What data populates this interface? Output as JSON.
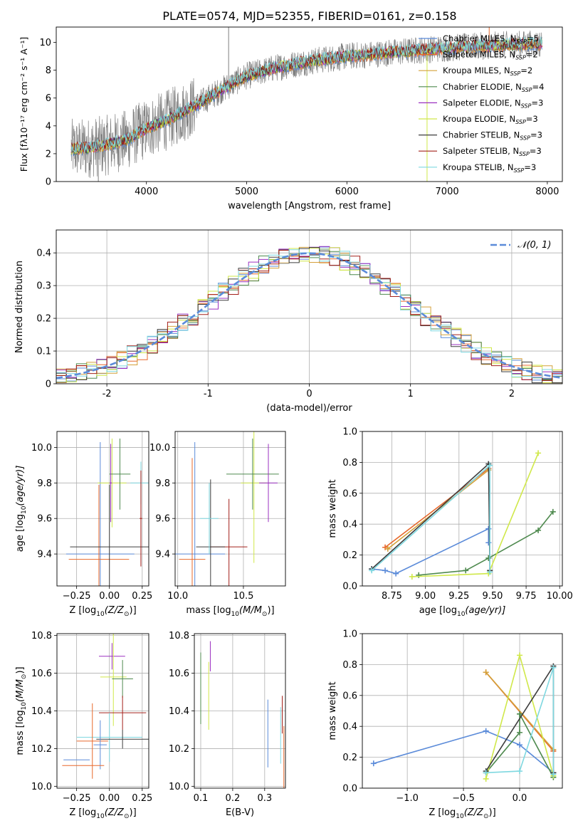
{
  "figure_title": "PLATE=0574, MJD=52355, FIBERID=0161, z=0.158",
  "colors": {
    "chabrier_miles": "#5b8bd9",
    "salpeter_miles": "#e8692c",
    "kroupa_miles": "#d4a03a",
    "chabrier_elodie": "#4f8a4f",
    "salpeter_elodie": "#9b30c0",
    "kroupa_elodie": "#d0e84a",
    "chabrier_stelib": "#3d3d3d",
    "salpeter_stelib": "#a3201a",
    "kroupa_stelib": "#7fd8e0",
    "data": "#808080",
    "normal": "#5b8bd9",
    "grid": "#b0b0b0"
  },
  "chart_data": [
    {
      "id": "spectrum",
      "type": "line",
      "xlabel": "wavelength [Angstrom, rest frame]",
      "ylabel": "Flux [fλ10⁻¹⁷ erg cm⁻² s⁻¹ A⁻¹]",
      "xlim": [
        3100,
        8150
      ],
      "ylim": [
        0,
        11.1
      ],
      "xticks": [
        4000,
        5000,
        6000,
        7000,
        8000
      ],
      "yticks": [
        0,
        2,
        4,
        6,
        8,
        10
      ],
      "grid": false,
      "legend_position": "top-right",
      "legend": [
        {
          "label": "Chabrier MILES, N",
          "sub": "SSP",
          "val": "=5"
        },
        {
          "label": "Salpeter MILES, N",
          "sub": "SSP",
          "val": "=2"
        },
        {
          "label": "Kroupa MILES, N",
          "sub": "SSP",
          "val": "=2"
        },
        {
          "label": "Chabrier ELODIE, N",
          "sub": "SSP",
          "val": "=4"
        },
        {
          "label": "Salpeter ELODIE, N",
          "sub": "SSP",
          "val": "=3"
        },
        {
          "label": "Kroupa ELODIE, N",
          "sub": "SSP",
          "val": "=3"
        },
        {
          "label": "Chabrier STELIB, N",
          "sub": "SSP",
          "val": "=3"
        },
        {
          "label": "Salpeter STELIB, N",
          "sub": "SSP",
          "val": "=3"
        },
        {
          "label": "Kroupa STELIB, N",
          "sub": "SSP",
          "val": "=3"
        }
      ],
      "continuum_x": [
        3200,
        3400,
        3600,
        3800,
        4000,
        4200,
        4500,
        4800,
        5000,
        5300,
        5600,
        6000,
        6500,
        7000,
        7500,
        7900
      ],
      "continuum_y": [
        2.3,
        2.4,
        2.6,
        3.0,
        3.8,
        4.4,
        5.5,
        6.8,
        7.6,
        8.2,
        8.6,
        9.0,
        9.3,
        9.6,
        9.8,
        9.9
      ],
      "spike_x": [
        4820,
        7420,
        6800,
        3520
      ],
      "spike_y": [
        11.1,
        11.1,
        0.0,
        0.0
      ]
    },
    {
      "id": "residual",
      "type": "histogram",
      "xlabel": "(data-model)/error",
      "ylabel": "Normed distribution",
      "xlim": [
        -2.5,
        2.5
      ],
      "ylim": [
        0,
        0.47
      ],
      "xticks": [
        -2,
        -1,
        0,
        1,
        2
      ],
      "yticks": [
        0,
        0.1,
        0.2,
        0.3,
        0.4
      ],
      "grid": true,
      "legend_position": "top-right",
      "legend_label": "𝒩(0, 1)",
      "bin_width": 0.1
    },
    {
      "id": "age_vs_Z",
      "type": "scatter",
      "xlabel_prefix": "Z [log",
      "xlabel_mid": "(Z/Z",
      "xlabel_suffix": ")]",
      "ylabel_prefix": "age  [log",
      "ylabel_mid": "(age/yr)]",
      "xlim": [
        -0.4,
        0.3
      ],
      "ylim": [
        9.22,
        10.09
      ],
      "xticks": [
        -0.25,
        0,
        0.25
      ],
      "xticklabels": [
        "−0.25",
        "0.00",
        "0.25"
      ],
      "yticks": [
        9.4,
        9.6,
        9.8,
        10.0
      ],
      "yticklabels": [
        "9.4",
        "9.6",
        "9.8",
        "10.0"
      ],
      "grid": true,
      "points": [
        {
          "c": "chabrier_miles",
          "x": -0.07,
          "y": 9.4,
          "xe": 0.26,
          "ye": 0.63
        },
        {
          "c": "salpeter_miles",
          "x": -0.08,
          "y": 9.37,
          "xe": 0.23,
          "ye": 0.42
        },
        {
          "c": "kroupa_elodie",
          "x": 0.02,
          "y": 9.8,
          "xe": 0.11,
          "ye": 0.25
        },
        {
          "c": "chabrier_elodie",
          "x": 0.08,
          "y": 9.85,
          "xe": 0.08,
          "ye": 0.2
        },
        {
          "c": "chabrier_stelib",
          "x": 0.0,
          "y": 9.44,
          "xe": 0.3,
          "ye": 0.35
        },
        {
          "c": "kroupa_stelib",
          "x": 0.24,
          "y": 9.8,
          "xe": 0.08,
          "ye": 0.12
        },
        {
          "c": "salpeter_stelib",
          "x": 0.24,
          "y": 9.6,
          "xe": 0.01,
          "ye": 0.27
        },
        {
          "c": "salpeter_elodie",
          "x": 0.01,
          "y": 9.8,
          "xe": 0.01,
          "ye": 0.22
        }
      ]
    },
    {
      "id": "age_vs_mass",
      "type": "scatter",
      "xlabel_prefix": "mass [log",
      "xlabel_mid": "(M/M",
      "xlabel_suffix": ")]",
      "xlim": [
        9.98,
        10.82
      ],
      "ylim": [
        9.22,
        10.09
      ],
      "xticks": [
        10.0,
        10.5
      ],
      "xticklabels": [
        "10.0",
        "10.5"
      ],
      "yticks": [
        9.4,
        9.6,
        9.8,
        10.0
      ],
      "yticklabels": [
        "9.4",
        "9.6",
        "9.8",
        "10.0"
      ],
      "grid": true,
      "points": [
        {
          "c": "chabrier_miles",
          "x": 10.13,
          "y": 9.4,
          "xe": 0.23,
          "ye": 0.63
        },
        {
          "c": "salpeter_miles",
          "x": 10.11,
          "y": 9.37,
          "xe": 0.1,
          "ye": 0.57
        },
        {
          "c": "salpeter_stelib",
          "x": 10.39,
          "y": 9.44,
          "xe": 0.14,
          "ye": 0.27
        },
        {
          "c": "chabrier_stelib",
          "x": 10.25,
          "y": 9.44,
          "xe": 0.11,
          "ye": 0.38
        },
        {
          "c": "kroupa_elodie",
          "x": 10.58,
          "y": 9.8,
          "xe": 0.1,
          "ye": 0.45
        },
        {
          "c": "chabrier_elodie",
          "x": 10.57,
          "y": 9.85,
          "xe": 0.2,
          "ye": 0.2
        },
        {
          "c": "salpeter_elodie",
          "x": 10.69,
          "y": 9.8,
          "xe": 0.07,
          "ye": 0.22
        },
        {
          "c": "kroupa_stelib",
          "x": 10.24,
          "y": 9.6,
          "xe": 0.07,
          "ye": 0.2
        }
      ]
    },
    {
      "id": "weight_vs_age",
      "type": "line",
      "xlabel_prefix": "age  [log",
      "xlabel_mid": "(age/yr)]",
      "ylabel": "mass weight",
      "xlim": [
        8.53,
        10.02
      ],
      "ylim": [
        0,
        1.0
      ],
      "xticks": [
        8.75,
        9.0,
        9.25,
        9.5,
        9.75,
        10.0
      ],
      "xticklabels": [
        "8.75",
        "9.00",
        "9.25",
        "9.50",
        "9.75",
        "10.00"
      ],
      "yticks": [
        0,
        0.2,
        0.4,
        0.6,
        0.8,
        1.0
      ],
      "yticklabels": [
        "0.0",
        "0.2",
        "0.4",
        "0.6",
        "0.8",
        "1.0"
      ],
      "grid": true,
      "series": [
        {
          "c": "chabrier_miles",
          "x": [
            8.6,
            8.7,
            8.78,
            9.47,
            9.47
          ],
          "y": [
            0.11,
            0.1,
            0.08,
            0.37,
            0.28
          ]
        },
        {
          "c": "salpeter_miles",
          "x": [
            8.7,
            9.47
          ],
          "y": [
            0.25,
            0.76
          ]
        },
        {
          "c": "kroupa_miles",
          "x": [
            8.72,
            9.47
          ],
          "y": [
            0.24,
            0.75
          ]
        },
        {
          "c": "chabrier_elodie",
          "x": [
            8.95,
            9.3,
            9.47,
            9.84,
            9.95
          ],
          "y": [
            0.07,
            0.1,
            0.18,
            0.36,
            0.48
          ]
        },
        {
          "c": "kroupa_elodie",
          "x": [
            8.9,
            9.47,
            9.84
          ],
          "y": [
            0.06,
            0.08,
            0.86
          ]
        },
        {
          "c": "chabrier_stelib",
          "x": [
            8.6,
            9.47,
            9.48
          ],
          "y": [
            0.11,
            0.79,
            0.1
          ]
        },
        {
          "c": "kroupa_stelib",
          "x": [
            8.6,
            9.48,
            9.48
          ],
          "y": [
            0.1,
            0.78,
            0.09
          ]
        }
      ]
    },
    {
      "id": "mass_vs_Z",
      "type": "scatter",
      "xlabel_prefix": "Z [log",
      "xlabel_mid": "(Z/Z",
      "xlabel_suffix": ")]",
      "ylabel_prefix": "mass [log",
      "ylabel_mid": "(M/M",
      "ylabel_suffix": ")]",
      "xlim": [
        -0.4,
        0.3
      ],
      "ylim": [
        9.99,
        10.81
      ],
      "xticks": [
        -0.25,
        0,
        0.25
      ],
      "xticklabels": [
        "−0.25",
        "0.00",
        "0.25"
      ],
      "yticks": [
        10.0,
        10.2,
        10.4,
        10.6,
        10.8
      ],
      "yticklabels": [
        "10.0",
        "10.2",
        "10.4",
        "10.6",
        "10.8"
      ],
      "grid": true,
      "points": [
        {
          "c": "salpeter_elodie",
          "x": 0.02,
          "y": 10.69,
          "xe": 0.1,
          "ye": 0.07
        },
        {
          "c": "kroupa_elodie",
          "x": 0.03,
          "y": 10.58,
          "xe": 0.1,
          "ye": 0.26
        },
        {
          "c": "chabrier_elodie",
          "x": 0.1,
          "y": 10.57,
          "xe": 0.08,
          "ye": 0.1
        },
        {
          "c": "salpeter_stelib",
          "x": 0.1,
          "y": 10.39,
          "xe": 0.18,
          "ye": 0.09
        },
        {
          "c": "kroupa_stelib",
          "x": 0.0,
          "y": 10.26,
          "xe": 0.25,
          "ye": 0.13
        },
        {
          "c": "chabrier_stelib",
          "x": 0.1,
          "y": 10.25,
          "xe": 0.2,
          "ye": 0.05
        },
        {
          "c": "salpeter_miles",
          "x": -0.13,
          "y": 10.24,
          "xe": 0.12,
          "ye": 0.2
        },
        {
          "c": "chabrier_miles",
          "x": -0.07,
          "y": 10.22,
          "xe": 0.05,
          "ye": 0.13
        },
        {
          "c": "salpeter_miles",
          "x": -0.2,
          "y": 10.11,
          "xe": 0.16,
          "ye": 0.0
        },
        {
          "c": "chabrier_miles",
          "x": -0.25,
          "y": 10.14,
          "xe": 0.1,
          "ye": 0.0
        }
      ]
    },
    {
      "id": "mass_vs_EBV",
      "type": "scatter",
      "xlabel": "E(B-V)",
      "xlim": [
        0.08,
        0.365
      ],
      "ylim": [
        9.99,
        10.81
      ],
      "xticks": [
        0.1,
        0.2,
        0.3
      ],
      "xticklabels": [
        "0.1",
        "0.2",
        "0.3"
      ],
      "yticks": [
        10.0,
        10.2,
        10.4,
        10.6,
        10.8
      ],
      "yticklabels": [
        "10.0",
        "10.2",
        "10.4",
        "10.6",
        "10.8"
      ],
      "grid": true,
      "points": [
        {
          "c": "chabrier_elodie",
          "x": 0.1,
          "y": 10.52,
          "xe": 0,
          "ye": 0.19
        },
        {
          "c": "kroupa_elodie",
          "x": 0.125,
          "y": 10.48,
          "xe": 0,
          "ye": 0.18
        },
        {
          "c": "salpeter_elodie",
          "x": 0.13,
          "y": 10.69,
          "xe": 0,
          "ye": 0.08
        },
        {
          "c": "chabrier_miles",
          "x": 0.31,
          "y": 10.28,
          "xe": 0,
          "ye": 0.18
        },
        {
          "c": "kroupa_stelib",
          "x": 0.35,
          "y": 10.27,
          "xe": 0,
          "ye": 0.15
        },
        {
          "c": "salpeter_stelib",
          "x": 0.355,
          "y": 10.38,
          "xe": 0,
          "ye": 0.1
        },
        {
          "c": "salpeter_miles",
          "x": 0.36,
          "y": 10.15,
          "xe": 0,
          "ye": 0.17
        }
      ]
    },
    {
      "id": "weight_vs_Z",
      "type": "line",
      "xlabel_prefix": "Z [log",
      "xlabel_mid": "(Z/Z",
      "xlabel_suffix": ")]",
      "ylabel": "mass weight",
      "xlim": [
        -1.4,
        0.38
      ],
      "ylim": [
        0,
        1.0
      ],
      "xticks": [
        -1.0,
        -0.5,
        0.0
      ],
      "xticklabels": [
        "−1.0",
        "−0.5",
        "0.0"
      ],
      "yticks": [
        0,
        0.2,
        0.4,
        0.6,
        0.8,
        1.0
      ],
      "yticklabels": [
        "0.0",
        "0.2",
        "0.4",
        "0.6",
        "0.8",
        "1.0"
      ],
      "grid": true,
      "series": [
        {
          "c": "chabrier_miles",
          "x": [
            -1.3,
            -0.3,
            0.0,
            0.3
          ],
          "y": [
            0.16,
            0.37,
            0.28,
            0.1
          ]
        },
        {
          "c": "salpeter_miles",
          "x": [
            -0.3,
            0.3
          ],
          "y": [
            0.75,
            0.24
          ]
        },
        {
          "c": "kroupa_miles",
          "x": [
            -0.3,
            0.3
          ],
          "y": [
            0.75,
            0.25
          ]
        },
        {
          "c": "chabrier_elodie",
          "x": [
            -0.3,
            0.0,
            0.0,
            0.3
          ],
          "y": [
            0.1,
            0.36,
            0.48,
            0.07
          ]
        },
        {
          "c": "kroupa_elodie",
          "x": [
            -0.3,
            0.0,
            0.3
          ],
          "y": [
            0.06,
            0.86,
            0.08
          ]
        },
        {
          "c": "chabrier_stelib",
          "x": [
            -0.3,
            0.3,
            0.3
          ],
          "y": [
            0.11,
            0.79,
            0.1
          ]
        },
        {
          "c": "kroupa_stelib",
          "x": [
            -0.3,
            0.0,
            0.3,
            0.3
          ],
          "y": [
            0.1,
            0.11,
            0.78,
            0.09
          ]
        }
      ]
    }
  ]
}
